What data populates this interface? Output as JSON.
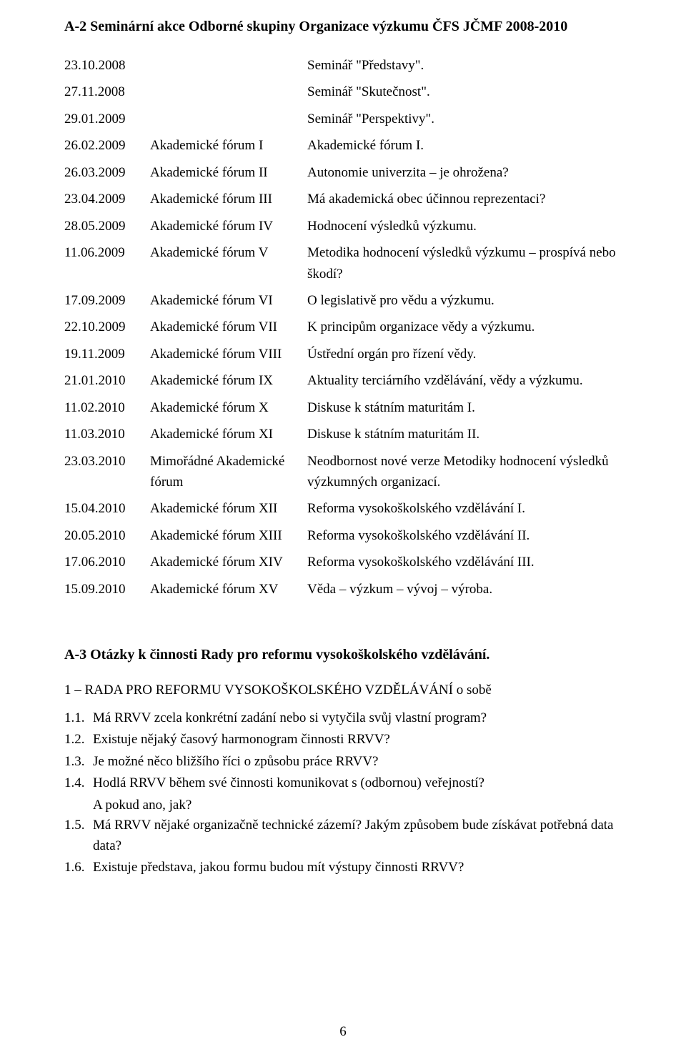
{
  "heading_a2": "A-2  Seminární akce Odborné skupiny Organizace výzkumu ČFS JČMF 2008-2010",
  "events": [
    {
      "date": "23.10.2008",
      "name": "",
      "desc": "Seminář \"Představy\"."
    },
    {
      "date": "27.11.2008",
      "name": "",
      "desc": "Seminář \"Skutečnost\"."
    },
    {
      "date": "29.01.2009",
      "name": "",
      "desc": "Seminář \"Perspektivy\"."
    },
    {
      "date": "26.02.2009",
      "name": "Akademické fórum I",
      "desc": "Akademické fórum I."
    },
    {
      "date": "26.03.2009",
      "name": "Akademické fórum II",
      "desc": "Autonomie univerzita  –  je ohrožena?"
    },
    {
      "date": "23.04.2009",
      "name": "Akademické fórum III",
      "desc": "Má akademická obec účinnou reprezentaci?"
    },
    {
      "date": "28.05.2009",
      "name": "Akademické fórum IV",
      "desc": "Hodnocení výsledků výzkumu."
    },
    {
      "date": "11.06.2009",
      "name": "Akademické fórum V",
      "desc": "Metodika hodnocení výsledků výzkumu  –  prospívá nebo škodí?"
    },
    {
      "date": "17.09.2009",
      "name": "Akademické fórum VI",
      "desc": "O legislativě pro vědu a výzkumu."
    },
    {
      "date": "22.10.2009",
      "name": "Akademické fórum VII",
      "desc": "K principům organizace vědy a výzkumu."
    },
    {
      "date": "19.11.2009",
      "name": "Akademické fórum VIII",
      "desc": "Ústřední orgán pro řízení vědy."
    },
    {
      "date": "21.01.2010",
      "name": "Akademické fórum IX",
      "desc": "Aktuality terciárního vzdělávání, vědy a výzkumu."
    },
    {
      "date": "11.02.2010",
      "name": "Akademické fórum X",
      "desc": "Diskuse k státním maturitám I."
    },
    {
      "date": "11.03.2010",
      "name": "Akademické fórum XI",
      "desc": "Diskuse k státním maturitám II."
    },
    {
      "date": "23.03.2010",
      "name": "Mimořádné Akademické fórum",
      "desc": "Neodbornost nové verze Metodiky hodnocení výsledků výzkumných organizací."
    },
    {
      "date": "15.04.2010",
      "name": "Akademické fórum XII",
      "desc": "Reforma vysokoškolského vzdělávání I."
    },
    {
      "date": "20.05.2010",
      "name": "Akademické fórum XIII",
      "desc": "Reforma vysokoškolského vzdělávání II."
    },
    {
      "date": "17.06.2010",
      "name": "Akademické fórum XIV",
      "desc": "Reforma vysokoškolského vzdělávání III."
    },
    {
      "date": "15.09.2010",
      "name": "Akademické fórum XV",
      "desc": "Věda – výzkum – vývoj – výroba."
    }
  ],
  "heading_a3": "A-3  Otázky k činnosti Rady pro reformu vysokoškolského vzdělávání.",
  "sub_heading": "1  –  RADA PRO REFORMU VYSOKOŠKOLSKÉHO VZDĚLÁVÁNÍ  o sobě",
  "questions": [
    {
      "num": "1.1.",
      "text": "Má RRVV zcela konkrétní zadání nebo si vytyčila svůj vlastní program?"
    },
    {
      "num": "1.2.",
      "text": "Existuje nějaký časový harmonogram činnosti RRVV?"
    },
    {
      "num": "1.3.",
      "text": "Je možné něco bližšího říci o způsobu práce RRVV?"
    },
    {
      "num": "1.4.",
      "text": "Hodlá RRVV během své činnosti komunikovat s (odbornou) veřejností?",
      "sub": "A pokud ano, jak?"
    },
    {
      "num": "1.5.",
      "text": "Má RRVV nějaké organizačně technické zázemí? Jakým způsobem bude získávat potřebná data data?"
    },
    {
      "num": "1.6.",
      "text": "Existuje představa, jakou formu budou mít výstupy činnosti RRVV?"
    }
  ],
  "page_number": "6",
  "colors": {
    "text": "#000000",
    "background": "#ffffff"
  }
}
